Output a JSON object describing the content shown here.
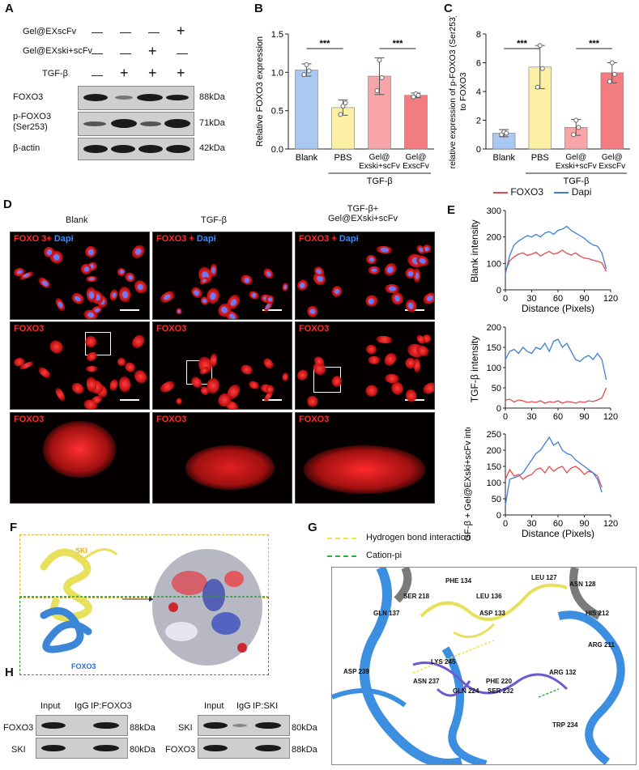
{
  "panels": {
    "A": "A",
    "B": "B",
    "C": "C",
    "D": "D",
    "E": "E",
    "F": "F",
    "G": "G",
    "H": "H"
  },
  "panelA": {
    "row_labels": [
      "Gel@EXscFv",
      "Gel@EXski+scFv",
      "TGF-β"
    ],
    "row1": [
      "—",
      "—",
      "—",
      "+"
    ],
    "row2": [
      "—",
      "—",
      "+",
      "—"
    ],
    "row3": [
      "—",
      "+",
      "+",
      "+"
    ],
    "blots": [
      {
        "name": "FOXO3",
        "size": "88kDa"
      },
      {
        "name": "p-FOXO3 (Ser253)",
        "size": "71kDa"
      },
      {
        "name": "β-actin",
        "size": "42kDa"
      }
    ]
  },
  "chart_data": [
    {
      "type": "bar",
      "id": "B",
      "categories": [
        "Blank",
        "PBS",
        "Gel@ Exski+scFv",
        "Gel@ ExscFv"
      ],
      "values": [
        1.03,
        0.54,
        0.95,
        0.7
      ],
      "errors": [
        0.08,
        0.1,
        0.24,
        0.03
      ],
      "points": [
        [
          0.97,
          1.1,
          1.02
        ],
        [
          0.45,
          0.56,
          0.6
        ],
        [
          0.76,
          1.16,
          0.93
        ],
        [
          0.68,
          0.72,
          0.7
        ]
      ],
      "colors": [
        "#a9c8f2",
        "#fbf0a3",
        "#f7a5a8",
        "#f27c80"
      ],
      "ylabel": "Relative FOXO3 expression",
      "ylim": [
        0,
        1.5
      ],
      "yticks": [
        "0.0",
        "0.5",
        "1.0",
        "1.5"
      ],
      "group_label": "TGF-β",
      "sig": [
        "***",
        "***"
      ]
    },
    {
      "type": "bar",
      "id": "C",
      "categories": [
        "Blank",
        "PBS",
        "Gel@ Exski+scFv",
        "Gel@ ExscFv"
      ],
      "values": [
        1.1,
        5.7,
        1.5,
        5.3
      ],
      "errors": [
        0.25,
        1.5,
        0.55,
        0.7
      ],
      "points": [
        [
          1.0,
          1.2,
          1.1
        ],
        [
          4.3,
          7.2,
          5.6
        ],
        [
          1.0,
          2.0,
          1.5
        ],
        [
          4.7,
          6.0,
          5.2
        ]
      ],
      "colors": [
        "#a9c8f2",
        "#fbf0a3",
        "#f7a5a8",
        "#f27c80"
      ],
      "ylabel": "relative expression of p-FOXO3 (Ser253) to FOXO3",
      "ylim": [
        0,
        8
      ],
      "yticks": [
        "0",
        "2",
        "4",
        "6",
        "8"
      ],
      "group_label": "TGF-β",
      "sig": [
        "***",
        "***"
      ]
    },
    {
      "type": "line",
      "id": "E1",
      "ylabel": "Blank intensity",
      "ylim": [
        0,
        300
      ],
      "yticks": [
        "0",
        "100",
        "200",
        "300"
      ],
      "xticks": [
        "0",
        "30",
        "60",
        "90",
        "120"
      ],
      "xlabel": "Distance (Pixels)",
      "series": [
        {
          "name": "FOXO3",
          "color": "#e8484b",
          "x": [
            0,
            5,
            10,
            15,
            20,
            25,
            30,
            35,
            40,
            45,
            50,
            55,
            60,
            65,
            70,
            75,
            80,
            85,
            90,
            95,
            100,
            105,
            110,
            115
          ],
          "y": [
            70,
            110,
            125,
            135,
            140,
            130,
            135,
            142,
            128,
            138,
            145,
            135,
            140,
            150,
            138,
            132,
            140,
            128,
            120,
            118,
            112,
            108,
            102,
            70
          ]
        },
        {
          "name": "Dapi",
          "color": "#3d7fd6",
          "x": [
            0,
            5,
            10,
            15,
            20,
            25,
            30,
            35,
            40,
            45,
            50,
            55,
            60,
            65,
            70,
            75,
            80,
            85,
            90,
            95,
            100,
            105,
            110,
            115
          ],
          "y": [
            60,
            130,
            170,
            185,
            195,
            205,
            200,
            210,
            200,
            215,
            220,
            210,
            225,
            230,
            240,
            225,
            215,
            205,
            195,
            180,
            170,
            165,
            140,
            80
          ]
        }
      ]
    },
    {
      "type": "line",
      "id": "E2",
      "ylabel": "TGF-β intensity",
      "ylim": [
        0,
        200
      ],
      "yticks": [
        "0",
        "50",
        "100",
        "150",
        "200"
      ],
      "xticks": [
        "0",
        "30",
        "60",
        "90",
        "120"
      ],
      "xlabel": "",
      "series": [
        {
          "name": "FOXO3",
          "color": "#e8484b",
          "x": [
            0,
            5,
            10,
            15,
            20,
            25,
            30,
            35,
            40,
            45,
            50,
            55,
            60,
            65,
            70,
            75,
            80,
            85,
            90,
            95,
            100,
            105,
            110,
            115
          ],
          "y": [
            20,
            22,
            15,
            20,
            18,
            14,
            16,
            14,
            18,
            12,
            16,
            14,
            18,
            12,
            16,
            15,
            12,
            16,
            14,
            18,
            16,
            20,
            25,
            50
          ]
        },
        {
          "name": "Dapi",
          "color": "#3d7fd6",
          "x": [
            0,
            5,
            10,
            15,
            20,
            25,
            30,
            35,
            40,
            45,
            50,
            55,
            60,
            65,
            70,
            75,
            80,
            85,
            90,
            95,
            100,
            105,
            110,
            115
          ],
          "y": [
            120,
            140,
            145,
            135,
            150,
            140,
            135,
            150,
            145,
            160,
            140,
            165,
            170,
            150,
            160,
            140,
            120,
            115,
            125,
            130,
            120,
            135,
            120,
            70
          ]
        }
      ]
    },
    {
      "type": "line",
      "id": "E3",
      "ylabel": "TGF-β + Gel@EXski+scFv intensity",
      "ylim": [
        0,
        250
      ],
      "yticks": [
        "0",
        "50",
        "100",
        "150",
        "200",
        "250"
      ],
      "xticks": [
        "0",
        "30",
        "60",
        "90",
        "120"
      ],
      "xlabel": "Distance (Pixels)",
      "series": [
        {
          "name": "FOXO3",
          "color": "#e8484b",
          "x": [
            0,
            5,
            10,
            15,
            20,
            25,
            30,
            35,
            40,
            45,
            50,
            55,
            60,
            65,
            70,
            75,
            80,
            85,
            90,
            95,
            100,
            105,
            110
          ],
          "y": [
            110,
            140,
            120,
            125,
            110,
            120,
            125,
            140,
            145,
            130,
            150,
            135,
            145,
            150,
            130,
            145,
            150,
            140,
            125,
            135,
            130,
            120,
            85
          ]
        },
        {
          "name": "Dapi",
          "color": "#3d7fd6",
          "x": [
            0,
            5,
            10,
            15,
            20,
            25,
            30,
            35,
            40,
            45,
            50,
            55,
            60,
            65,
            70,
            75,
            80,
            85,
            90,
            95,
            100,
            105,
            110
          ],
          "y": [
            30,
            110,
            115,
            120,
            130,
            150,
            170,
            190,
            200,
            220,
            240,
            215,
            225,
            200,
            190,
            185,
            170,
            160,
            150,
            140,
            130,
            110,
            70
          ]
        }
      ]
    }
  ],
  "legendE": {
    "foxo3": "FOXO3",
    "dapi": "Dapi"
  },
  "panelD": {
    "cols": [
      "Blank",
      "TGF-β",
      "TGF-β+ Gel@EXski+scFv"
    ],
    "merge_label": "FOXO 3+",
    "merge_label2": "FOXO3 +",
    "dapi": "Dapi",
    "foxo": "FOXO3"
  },
  "panelF": {
    "ski": "SKI",
    "foxo3": "FOXO3"
  },
  "panelG": {
    "legend": [
      "Hydrogen bond interaction",
      "Cation-pi"
    ],
    "residues": [
      "PHE 134",
      "LEU 127",
      "ASN 128",
      "SER 218",
      "LEU 136",
      "GLN 137",
      "ASP 133",
      "HIS 212",
      "ARG 211",
      "LYS 245",
      "ASP 239",
      "ASN 237",
      "PHE 220",
      "ARG 132",
      "GLN 224",
      "SER 232",
      "TRP 234"
    ]
  },
  "panelH": {
    "left_header": [
      "Input",
      "IgG",
      "IP:FOXO3"
    ],
    "right_header": [
      "Input",
      "IgG",
      "IP:SKI"
    ],
    "left_rows": [
      {
        "name": "FOXO3",
        "size": "88kDa"
      },
      {
        "name": "SKI",
        "size": "80kDa"
      }
    ],
    "right_rows": [
      {
        "name": "SKI",
        "size": "80kDa"
      },
      {
        "name": "FOXO3",
        "size": "88kDa"
      }
    ]
  }
}
